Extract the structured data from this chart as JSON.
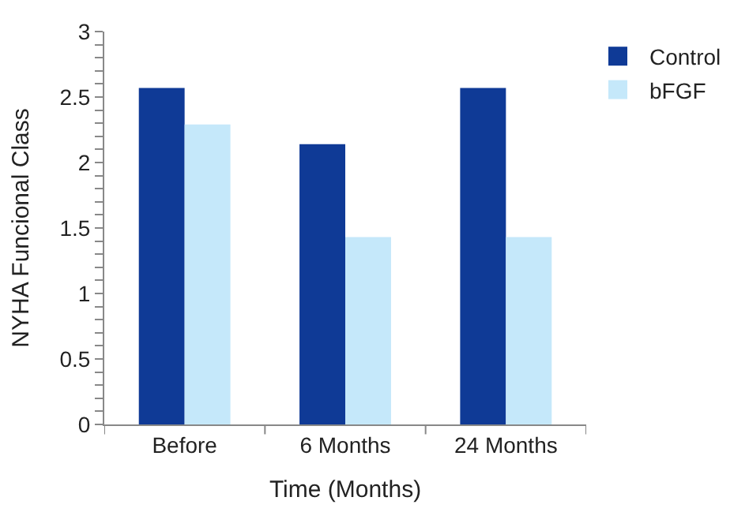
{
  "chart_data": {
    "type": "bar",
    "xlabel": "Time (Months)",
    "ylabel": "NYHA Funcional Class",
    "categories": [
      "Before",
      "6 Months",
      "24 Months"
    ],
    "series": [
      {
        "name": "Control",
        "color": "#0f3a96",
        "values": [
          2.57,
          2.14,
          2.57
        ]
      },
      {
        "name": "bFGF",
        "color": "#c5e8fa",
        "values": [
          2.29,
          1.43,
          1.43
        ]
      }
    ],
    "ylim": [
      0,
      3
    ],
    "yticks": [
      0,
      {
        "value": 0.1,
        "label": null
      },
      {
        "value": 0.2,
        "label": null
      },
      {
        "value": 0.3,
        "label": null
      },
      {
        "value": 0.4,
        "label": null
      },
      0.5,
      {
        "value": 0.6,
        "label": null
      },
      {
        "value": 0.7,
        "label": null
      },
      {
        "value": 0.8,
        "label": null
      },
      {
        "value": 0.9,
        "label": null
      },
      1,
      {
        "value": 1.1,
        "label": null
      },
      {
        "value": 1.2,
        "label": null
      },
      {
        "value": 1.3,
        "label": null
      },
      {
        "value": 1.4,
        "label": null
      },
      1.5,
      {
        "value": 1.6,
        "label": null
      },
      {
        "value": 1.7,
        "label": null
      },
      {
        "value": 1.8,
        "label": null
      },
      {
        "value": 1.9,
        "label": null
      },
      2,
      {
        "value": 2.1,
        "label": null
      },
      {
        "value": 2.2,
        "label": null
      },
      {
        "value": 2.3,
        "label": null
      },
      {
        "value": 2.4,
        "label": null
      },
      2.5,
      {
        "value": 2.6,
        "label": null
      },
      {
        "value": 2.7,
        "label": null
      },
      {
        "value": 2.8,
        "label": null
      },
      {
        "value": 2.9,
        "label": null
      },
      3
    ],
    "legend": "top right"
  }
}
